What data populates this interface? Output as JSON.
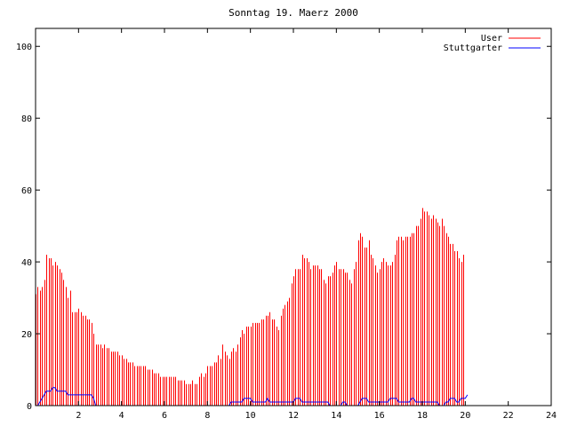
{
  "chart_data": {
    "type": "line",
    "title": "Sonntag 19. Maerz 2000",
    "xlabel": "",
    "ylabel": "",
    "xlim": [
      0,
      24
    ],
    "ylim": [
      0,
      105
    ],
    "x_ticks": [
      2,
      4,
      6,
      8,
      10,
      12,
      14,
      16,
      18,
      20,
      22,
      24
    ],
    "y_ticks": [
      0,
      20,
      40,
      60,
      80,
      100
    ],
    "grid": false,
    "legend_position": "top-right",
    "x_step": 0.1,
    "series": [
      {
        "name": "User",
        "style": "impulses",
        "color": "#ff0000",
        "values": [
          31,
          33,
          32,
          33,
          35,
          42,
          41,
          41,
          39,
          40,
          39,
          38,
          37,
          35,
          33,
          30,
          32,
          26,
          26,
          26,
          27,
          26,
          25,
          25,
          24,
          24,
          23,
          20,
          17,
          17,
          17,
          16,
          17,
          16,
          16,
          15,
          15,
          15,
          15,
          14,
          14,
          13,
          13,
          12,
          12,
          12,
          11,
          11,
          11,
          11,
          11,
          11,
          10,
          10,
          10,
          9,
          9,
          9,
          8,
          8,
          8,
          8,
          8,
          8,
          8,
          8,
          7,
          7,
          7,
          7,
          6,
          6,
          6,
          7,
          6,
          6,
          8,
          9,
          8,
          9,
          11,
          11,
          11,
          12,
          12,
          14,
          13,
          17,
          15,
          14,
          13,
          15,
          16,
          15,
          17,
          19,
          21,
          20,
          22,
          22,
          22,
          23,
          23,
          23,
          23,
          24,
          24,
          25,
          25,
          26,
          24,
          24,
          22,
          21,
          25,
          27,
          28,
          29,
          30,
          34,
          36,
          38,
          38,
          38,
          42,
          41,
          41,
          40,
          38,
          39,
          39,
          39,
          38,
          38,
          35,
          34,
          36,
          36,
          37,
          39,
          40,
          38,
          38,
          38,
          37,
          37,
          35,
          34,
          38,
          40,
          46,
          48,
          47,
          44,
          44,
          46,
          42,
          41,
          39,
          37,
          38,
          40,
          41,
          40,
          39,
          39,
          40,
          42,
          46,
          47,
          47,
          46,
          47,
          47,
          47,
          48,
          48,
          50,
          50,
          52,
          55,
          54,
          54,
          53,
          52,
          53,
          52,
          51,
          50,
          52,
          50,
          48,
          47,
          45,
          45,
          43,
          43,
          41,
          40,
          42
        ]
      },
      {
        "name": "Stuttgarter",
        "style": "line",
        "color": "#0000ff",
        "values": [
          0,
          0,
          1,
          2,
          3,
          4,
          4,
          4,
          5,
          5,
          4,
          4,
          4,
          4,
          4,
          3,
          3,
          3,
          3,
          3,
          3,
          3,
          3,
          3,
          3,
          3,
          3,
          2,
          0,
          0,
          0,
          0,
          0,
          0,
          0,
          0,
          0,
          0,
          0,
          0,
          0,
          0,
          0,
          0,
          0,
          0,
          0,
          0,
          0,
          0,
          0,
          0,
          0,
          0,
          0,
          0,
          0,
          0,
          0,
          0,
          0,
          0,
          0,
          0,
          0,
          0,
          0,
          0,
          0,
          0,
          0,
          0,
          0,
          0,
          0,
          0,
          0,
          0,
          0,
          0,
          0,
          0,
          0,
          0,
          0,
          0,
          0,
          0,
          0,
          0,
          0,
          1,
          1,
          1,
          1,
          1,
          1,
          2,
          2,
          2,
          2,
          1,
          1,
          1,
          1,
          1,
          1,
          1,
          2,
          1,
          1,
          1,
          1,
          1,
          1,
          1,
          1,
          1,
          1,
          1,
          1,
          2,
          2,
          2,
          1,
          1,
          1,
          1,
          1,
          1,
          1,
          1,
          1,
          1,
          1,
          1,
          1,
          0,
          0,
          0,
          0,
          0,
          0,
          1,
          1,
          0,
          0,
          0,
          0,
          0,
          0,
          1,
          2,
          2,
          2,
          1,
          1,
          1,
          1,
          1,
          1,
          1,
          1,
          1,
          1,
          2,
          2,
          2,
          2,
          1,
          1,
          1,
          1,
          1,
          1,
          2,
          2,
          1,
          1,
          1,
          1,
          1,
          1,
          1,
          1,
          1,
          1,
          1,
          0,
          0,
          0,
          1,
          1,
          2,
          2,
          2,
          1,
          1,
          2,
          2,
          2,
          3
        ]
      }
    ]
  }
}
